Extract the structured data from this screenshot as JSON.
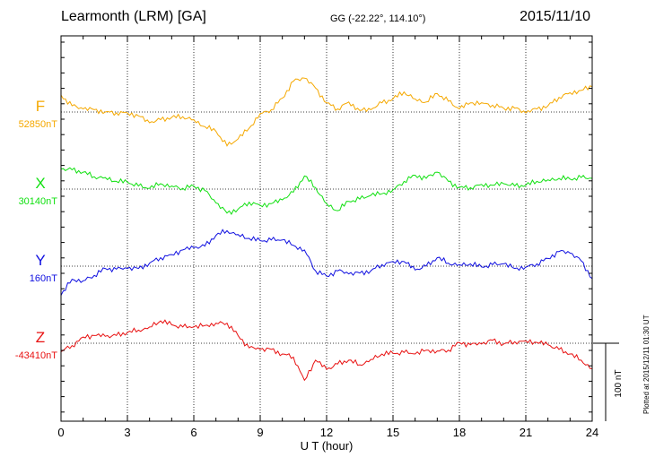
{
  "header": {
    "station": "Learmonth (LRM)  [GA]",
    "coords": "GG (-22.22°, 114.10°)",
    "date": "2015/11/10"
  },
  "footer": {
    "plotted": "Plotted at 2015/12/11 01:30 UT"
  },
  "chart_data": {
    "type": "line",
    "title": "Learmonth (LRM)  [GA]",
    "xlabel": "U T (hour)",
    "xlim": [
      0,
      24
    ],
    "x_ticks": [
      "0",
      "3",
      "6",
      "9",
      "12",
      "15",
      "18",
      "21",
      "24"
    ],
    "grid": true,
    "scale_bar": "100 nT",
    "series": [
      {
        "name": "F",
        "baseline": "52850nT",
        "baseline_nT": 52850,
        "color": "#f5a800",
        "x": [
          0,
          0.5,
          1,
          1.5,
          2,
          2.5,
          3,
          3.5,
          4,
          4.5,
          5,
          5.5,
          6,
          6.5,
          7,
          7.5,
          8,
          8.5,
          9,
          9.5,
          10,
          10.5,
          11,
          11.5,
          12,
          12.5,
          13,
          13.5,
          14,
          14.5,
          15,
          15.5,
          16,
          16.5,
          17,
          17.5,
          18,
          18.5,
          19,
          19.5,
          20,
          20.5,
          21,
          21.5,
          22,
          22.5,
          23,
          23.5,
          24
        ],
        "values": [
          22,
          8,
          4,
          3,
          0,
          -1,
          -1,
          -5,
          -14,
          -10,
          -7,
          -6,
          -10,
          -19,
          -25,
          -44,
          -35,
          -21,
          -2,
          3,
          18,
          40,
          44,
          31,
          12,
          4,
          13,
          2,
          3,
          12,
          17,
          26,
          17,
          13,
          24,
          14,
          4,
          12,
          12,
          9,
          5,
          5,
          -1,
          4,
          8,
          19,
          25,
          28,
          33
        ]
      },
      {
        "name": "X",
        "baseline": "30140nT",
        "baseline_nT": 30140,
        "color": "#11e011",
        "x": [
          0,
          0.5,
          1,
          1.5,
          2,
          2.5,
          3,
          3.5,
          4,
          4.5,
          5,
          5.5,
          6,
          6.5,
          7,
          7.5,
          8,
          8.5,
          9,
          9.5,
          10,
          10.5,
          11,
          11.5,
          12,
          12.5,
          13,
          13.5,
          14,
          14.5,
          15,
          15.5,
          16,
          16.5,
          17,
          17.5,
          18,
          18.5,
          19,
          19.5,
          20,
          20.5,
          21,
          21.5,
          22,
          22.5,
          23,
          23.5,
          24
        ],
        "values": [
          26,
          25,
          22,
          16,
          15,
          10,
          9,
          4,
          1,
          7,
          4,
          1,
          4,
          -2,
          -18,
          -31,
          -26,
          -17,
          -21,
          -19,
          -14,
          -4,
          17,
          2,
          -19,
          -28,
          -16,
          -13,
          -8,
          -6,
          -1,
          10,
          18,
          14,
          22,
          10,
          2,
          2,
          6,
          5,
          7,
          4,
          5,
          10,
          12,
          14,
          13,
          15,
          14
        ]
      },
      {
        "name": "Y",
        "baseline": "160nT",
        "baseline_nT": 160,
        "color": "#1010e0",
        "x": [
          0,
          0.5,
          1,
          1.5,
          2,
          2.5,
          3,
          3.5,
          4,
          4.5,
          5,
          5.5,
          6,
          6.5,
          7,
          7.5,
          8,
          8.5,
          9,
          9.5,
          10,
          10.5,
          11,
          11.5,
          12,
          12.5,
          13,
          13.5,
          14,
          14.5,
          15,
          15.5,
          16,
          16.5,
          17,
          17.5,
          18,
          18.5,
          19,
          19.5,
          20,
          20.5,
          21,
          21.5,
          22,
          22.5,
          23,
          23.5,
          24
        ],
        "values": [
          -38,
          -17,
          -19,
          -12,
          -3,
          -4,
          -3,
          -3,
          4,
          11,
          15,
          21,
          24,
          26,
          40,
          46,
          41,
          36,
          33,
          34,
          34,
          27,
          21,
          -6,
          -13,
          -6,
          -10,
          -9,
          -6,
          2,
          6,
          6,
          -5,
          0,
          11,
          4,
          2,
          3,
          -1,
          2,
          3,
          -3,
          -1,
          3,
          10,
          19,
          17,
          7,
          -16
        ]
      },
      {
        "name": "Z",
        "baseline": "-43410nT",
        "baseline_nT": -43410,
        "color": "#e81010",
        "x": [
          0,
          0.5,
          1,
          1.5,
          2,
          2.5,
          3,
          3.5,
          4,
          4.5,
          5,
          5.5,
          6,
          6.5,
          7,
          7.5,
          8,
          8.5,
          9,
          9.5,
          10,
          10.5,
          11,
          11.5,
          12,
          12.5,
          13,
          13.5,
          14,
          14.5,
          15,
          15.5,
          16,
          16.5,
          17,
          17.5,
          18,
          18.5,
          19,
          19.5,
          20,
          20.5,
          21,
          21.5,
          22,
          22.5,
          23,
          23.5,
          24
        ],
        "values": [
          -11,
          -3,
          8,
          10,
          9,
          10,
          14,
          17,
          21,
          29,
          24,
          21,
          21,
          23,
          26,
          26,
          10,
          -6,
          -8,
          -8,
          -14,
          -18,
          -48,
          -22,
          -34,
          -27,
          -22,
          -28,
          -21,
          -14,
          -13,
          -12,
          -14,
          -9,
          -10,
          -9,
          1,
          -2,
          -1,
          4,
          -1,
          2,
          3,
          1,
          -2,
          -8,
          -14,
          -22,
          -33
        ]
      }
    ]
  }
}
